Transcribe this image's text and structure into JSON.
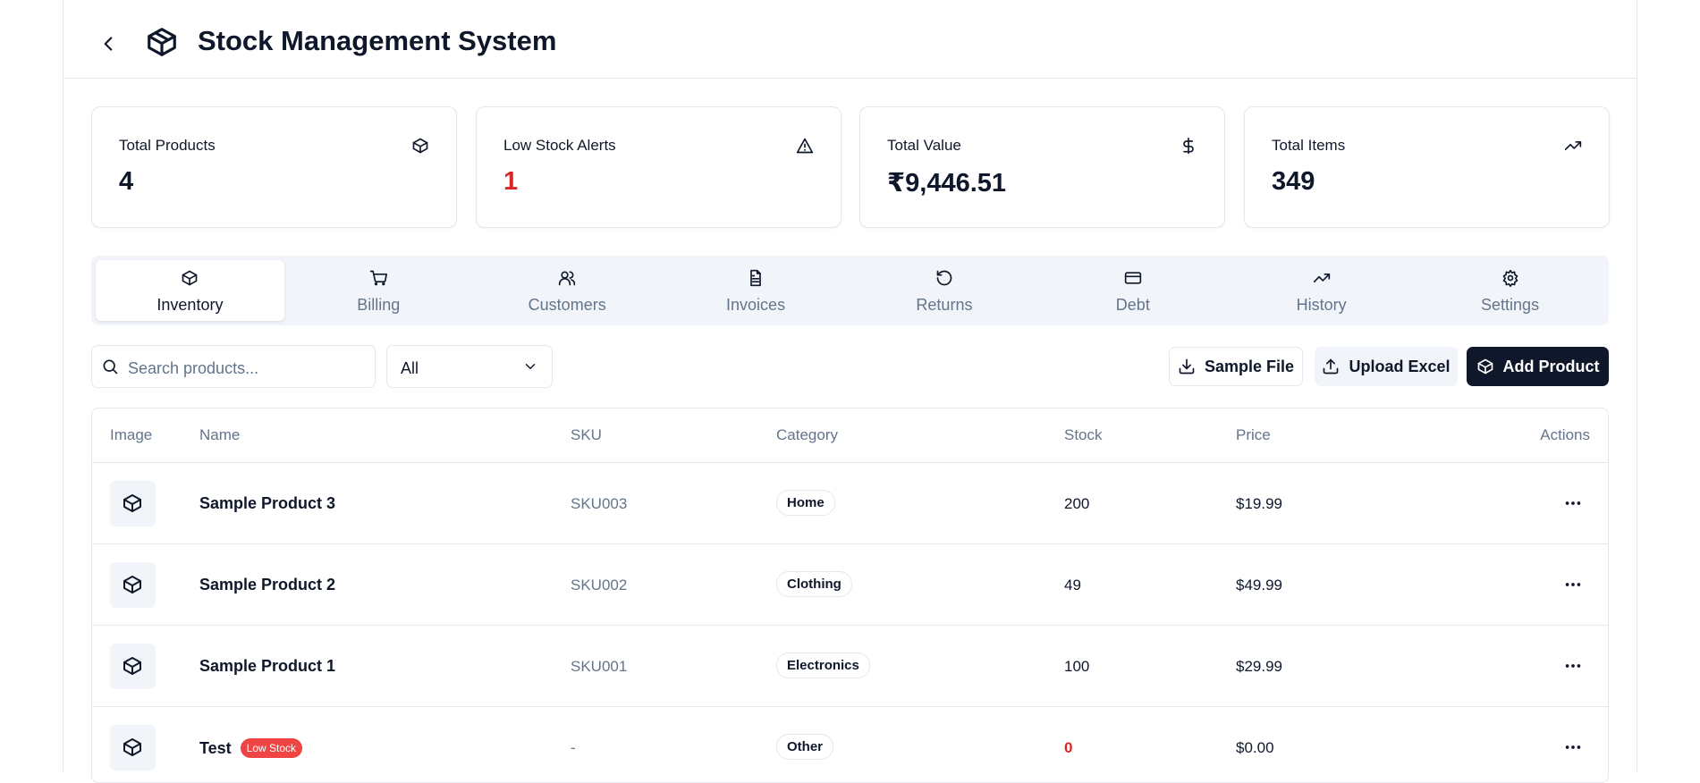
{
  "header": {
    "title": "Stock Management System"
  },
  "stats": [
    {
      "label": "Total Products",
      "value": "4"
    },
    {
      "label": "Low Stock Alerts",
      "value": "1"
    },
    {
      "label": "Total Value",
      "value": "₹9,446.51"
    },
    {
      "label": "Total Items",
      "value": "349"
    }
  ],
  "tabs": [
    "Inventory",
    "Billing",
    "Customers",
    "Invoices",
    "Returns",
    "Debt",
    "History",
    "Settings"
  ],
  "toolbar": {
    "search_placeholder": "Search products...",
    "filter": "All",
    "buttons": [
      "Sample File",
      "Upload Excel",
      "Add Product"
    ]
  },
  "table": {
    "columns": [
      "Image",
      "Name",
      "SKU",
      "Category",
      "Stock",
      "Price",
      "Actions"
    ],
    "rows": [
      {
        "name": "Sample Product 3",
        "sku": "SKU003",
        "category": "Home",
        "stock": "200",
        "price": "$19.99"
      },
      {
        "name": "Sample Product 2",
        "sku": "SKU002",
        "category": "Clothing",
        "stock": "49",
        "price": "$49.99"
      },
      {
        "name": "Sample Product 1",
        "sku": "SKU001",
        "category": "Electronics",
        "stock": "100",
        "price": "$29.99"
      },
      {
        "name": "Test",
        "badge": "Low Stock",
        "sku": "-",
        "category": "Other",
        "stock": "0",
        "price": "$0.00"
      }
    ]
  }
}
